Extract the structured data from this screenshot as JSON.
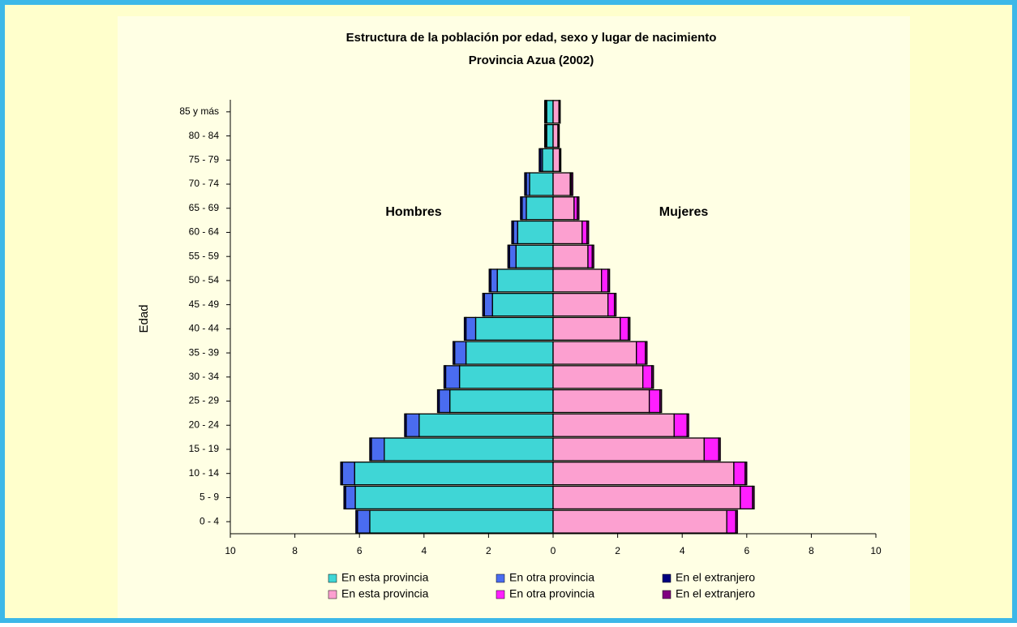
{
  "chart_data": {
    "type": "pyramid",
    "title": "Estructura de la población por edad, sexo y lugar de nacimiento",
    "subtitle": "Provincia Azua (2002)",
    "ylabel": "Edad",
    "annotations": [
      "Hombres",
      "Mujeres"
    ],
    "categories": [
      "0 - 4",
      "5 - 9",
      "10 - 14",
      "15 - 19",
      "20 - 24",
      "25 - 29",
      "30 - 34",
      "35 - 39",
      "40 - 44",
      "45 - 49",
      "50 - 54",
      "55 - 59",
      "60 - 64",
      "65 - 69",
      "70 - 74",
      "75 - 79",
      "80 - 84",
      "85 y más"
    ],
    "series": [
      {
        "name": "En esta provincia",
        "color": "#3fd6d6",
        "values": [
          -5.68,
          -6.13,
          -6.15,
          -5.23,
          -4.15,
          -3.2,
          -2.9,
          -2.7,
          -2.4,
          -1.88,
          -1.73,
          -1.15,
          -1.1,
          -0.83,
          -0.73,
          -0.33,
          -0.2,
          -0.2
        ]
      },
      {
        "name": "En otra provincia",
        "color": "#4a6cf0",
        "values": [
          -0.38,
          -0.3,
          -0.38,
          -0.4,
          -0.4,
          -0.33,
          -0.43,
          -0.35,
          -0.3,
          -0.25,
          -0.2,
          -0.2,
          -0.13,
          -0.13,
          -0.1,
          -0.05,
          -0.03,
          -0.03
        ]
      },
      {
        "name": "En el extranjero",
        "color": "#000080",
        "values": [
          -0.05,
          -0.05,
          -0.05,
          -0.05,
          -0.05,
          -0.05,
          -0.05,
          -0.05,
          -0.05,
          -0.05,
          -0.05,
          -0.05,
          -0.05,
          -0.05,
          -0.05,
          -0.05,
          -0.03,
          -0.03
        ]
      },
      {
        "name": "En esta provincia",
        "color": "#fca0d0",
        "values": [
          5.38,
          5.8,
          5.6,
          4.68,
          3.75,
          2.98,
          2.78,
          2.58,
          2.08,
          1.7,
          1.5,
          1.08,
          0.9,
          0.65,
          0.53,
          0.2,
          0.15,
          0.18
        ]
      },
      {
        "name": "En otra provincia",
        "color": "#ff1fff",
        "values": [
          0.28,
          0.38,
          0.35,
          0.45,
          0.4,
          0.33,
          0.28,
          0.28,
          0.25,
          0.2,
          0.2,
          0.13,
          0.15,
          0.1,
          0.03,
          0.02,
          0.02,
          0.02
        ]
      },
      {
        "name": "En el extranjero",
        "color": "#800080",
        "values": [
          0.05,
          0.05,
          0.05,
          0.05,
          0.05,
          0.05,
          0.05,
          0.05,
          0.05,
          0.05,
          0.05,
          0.05,
          0.05,
          0.05,
          0.05,
          0.02,
          0.02,
          0.02
        ]
      }
    ],
    "xlim": [
      -10,
      10
    ],
    "xticks": [
      {
        "value": -10,
        "label": "10"
      },
      {
        "value": -8,
        "label": "8"
      },
      {
        "value": -6,
        "label": "6"
      },
      {
        "value": -4,
        "label": "4"
      },
      {
        "value": -2,
        "label": "2"
      },
      0,
      2,
      4,
      6,
      8,
      10
    ]
  }
}
